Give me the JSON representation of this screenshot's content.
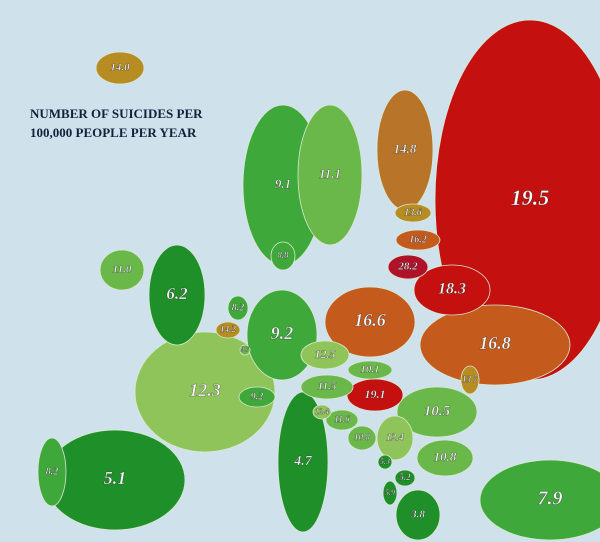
{
  "title_lines": [
    "NUMBER OF SUICIDES PER",
    "100,000 PEOPLE PER YEAR"
  ],
  "regions": [
    {
      "label": "14.0"
    },
    {
      "label": "11.1"
    },
    {
      "label": "9.1"
    },
    {
      "label": "14.8"
    },
    {
      "label": "19.5"
    },
    {
      "label": "13.6"
    },
    {
      "label": "16.2"
    },
    {
      "label": "28.2"
    },
    {
      "label": "18.3"
    },
    {
      "label": "11.0"
    },
    {
      "label": "6.2"
    },
    {
      "label": "8.8"
    },
    {
      "label": "8.2"
    },
    {
      "label": "14.2"
    },
    {
      "label": "9.7"
    },
    {
      "label": "9.2"
    },
    {
      "label": "16.6"
    },
    {
      "label": "16.8"
    },
    {
      "label": "12.5"
    },
    {
      "label": "10.1"
    },
    {
      "label": "13.7"
    },
    {
      "label": "12.3"
    },
    {
      "label": "11.5"
    },
    {
      "label": "19.1"
    },
    {
      "label": "9.2"
    },
    {
      "label": "10.5"
    },
    {
      "label": "12.4"
    },
    {
      "label": "11.6"
    },
    {
      "label": "10.8"
    },
    {
      "label": "12.4"
    },
    {
      "label": "10.8"
    },
    {
      "label": "4.7"
    },
    {
      "label": "8.2"
    },
    {
      "label": "5.1"
    },
    {
      "label": "5.3"
    },
    {
      "label": "5.2"
    },
    {
      "label": "5.9"
    },
    {
      "label": "3.8"
    },
    {
      "label": "7.9"
    }
  ]
}
